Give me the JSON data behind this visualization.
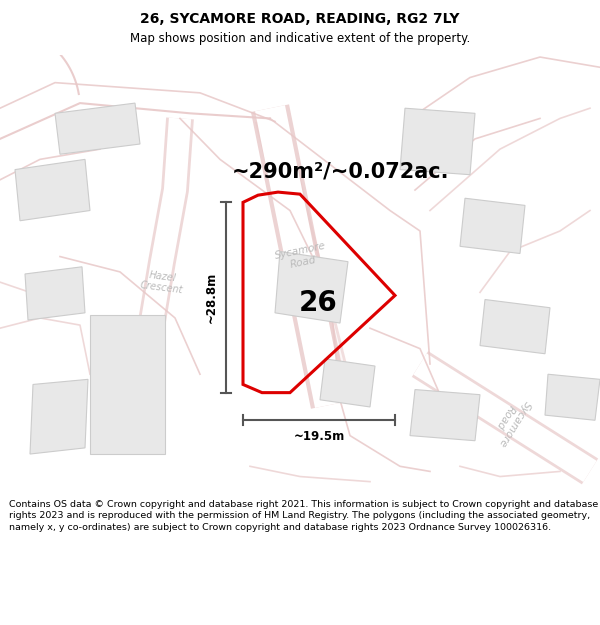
{
  "title": "26, SYCAMORE ROAD, READING, RG2 7LY",
  "subtitle": "Map shows position and indicative extent of the property.",
  "area_text": "~290m²/~0.072ac.",
  "number_label": "26",
  "dim_width": "~19.5m",
  "dim_height": "~28.8m",
  "footer": "Contains OS data © Crown copyright and database right 2021. This information is subject to Crown copyright and database rights 2023 and is reproduced with the permission of HM Land Registry. The polygons (including the associated geometry, namely x, y co-ordinates) are subject to Crown copyright and database rights 2023 Ordnance Survey 100026316.",
  "bg_color": "#ffffff",
  "map_bg": "#ffffff",
  "road_outline_color": "#e8c8c8",
  "road_fill_color": "#f9f0f0",
  "plot_edge_color": "#dd0000",
  "building_fill": "#e8e8e8",
  "building_edge": "#cccccc",
  "road_label_color": "#bbbbbb",
  "dim_line_color": "#555555",
  "title_fontsize": 10,
  "subtitle_fontsize": 8.5,
  "area_fontsize": 15,
  "number_fontsize": 20,
  "footer_fontsize": 6.8,
  "road_label_fontsize": 7.5,
  "dim_fontsize": 8.5
}
